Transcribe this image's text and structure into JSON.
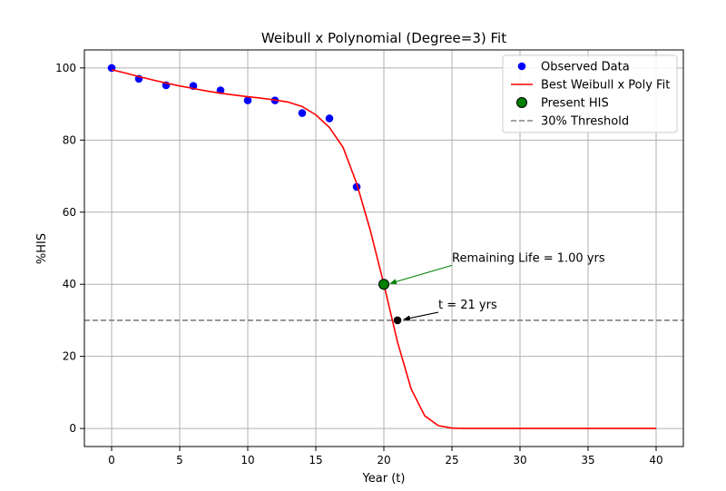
{
  "chart_data": {
    "type": "line",
    "title": "Weibull x Polynomial (Degree=3) Fit",
    "xlabel": "Year (t)",
    "ylabel": "%HIS",
    "xlim": [
      -2,
      42
    ],
    "ylim": [
      -5,
      105
    ],
    "x_ticks": [
      0,
      5,
      10,
      15,
      20,
      25,
      30,
      35,
      40
    ],
    "y_ticks": [
      0,
      20,
      40,
      60,
      80,
      100
    ],
    "grid": true,
    "legend_position": "top-right",
    "series": [
      {
        "name": "Observed Data",
        "kind": "scatter",
        "color": "#0000ff",
        "x": [
          0,
          2,
          4,
          6,
          8,
          10,
          12,
          14,
          16,
          18
        ],
        "y": [
          100,
          97,
          95.2,
          95,
          93.8,
          91,
          91,
          87.5,
          86,
          67
        ]
      },
      {
        "name": "Best Weibull x Poly Fit",
        "kind": "line",
        "color": "#ff0000",
        "x": [
          0,
          1,
          2,
          3,
          4,
          5,
          6,
          7,
          8,
          9,
          10,
          11,
          12,
          13,
          14,
          15,
          16,
          17,
          18,
          19,
          20,
          21,
          22,
          23,
          24,
          25,
          26,
          28,
          30,
          35,
          40
        ],
        "y": [
          99.5,
          98.6,
          97.6,
          96.7,
          95.8,
          95,
          94.3,
          93.6,
          93,
          92.5,
          92,
          91.6,
          91.1,
          90.5,
          89.3,
          87,
          83.5,
          78,
          68,
          55,
          40,
          24,
          11,
          3.5,
          0.8,
          0.1,
          0,
          0,
          0,
          0,
          0
        ]
      },
      {
        "name": "Present HIS",
        "kind": "point",
        "color": "#008000",
        "x": [
          20
        ],
        "y": [
          40
        ]
      },
      {
        "name": "30% Threshold",
        "kind": "hline",
        "color": "#808080",
        "y": 30
      }
    ],
    "extra_points": [
      {
        "x": 21,
        "y": 30,
        "color": "#000000"
      }
    ],
    "annotations": [
      {
        "text": "Remaining Life = 1.00 yrs",
        "point": [
          20,
          40
        ],
        "text_at": [
          25,
          46
        ],
        "color": "#008000"
      },
      {
        "text": "t = 21 yrs",
        "point": [
          21,
          30
        ],
        "text_at": [
          24,
          33
        ],
        "color": "#000000"
      }
    ]
  }
}
